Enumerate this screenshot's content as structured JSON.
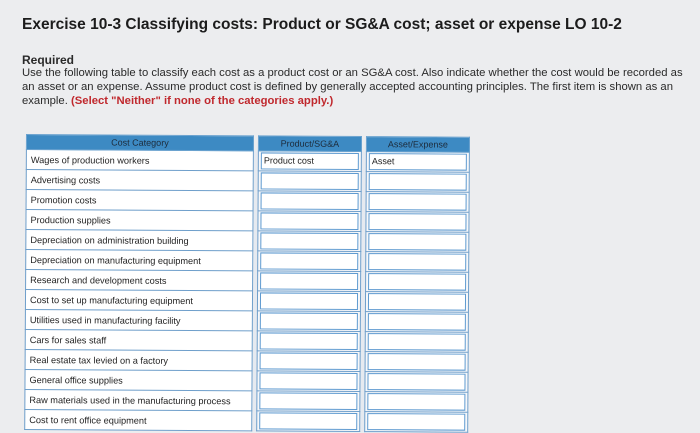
{
  "header": {
    "title": "Exercise 10-3 Classifying costs: Product or SG&A cost; asset or expense LO 10-2"
  },
  "instructions": {
    "heading": "Required",
    "text_part1": "Use the following table to classify each cost as a product cost or an SG&A cost. Also indicate whether the cost would be recorded as an asset or an expense. Assume product cost is defined by generally accepted accounting principles. The first item is shown as an example.",
    "text_red": "(Select \"Neither\" if none of the categories apply.)"
  },
  "table": {
    "headers": {
      "category": "Cost Category",
      "product_sga": "Product/SG&A",
      "asset_expense": "Asset/Expense"
    },
    "rows": [
      {
        "category": "Wages of production workers",
        "product_sga": "Product cost",
        "asset_expense": "Asset"
      },
      {
        "category": "Advertising costs",
        "product_sga": "",
        "asset_expense": ""
      },
      {
        "category": "Promotion costs",
        "product_sga": "",
        "asset_expense": ""
      },
      {
        "category": "Production supplies",
        "product_sga": "",
        "asset_expense": ""
      },
      {
        "category": "Depreciation on administration building",
        "product_sga": "",
        "asset_expense": ""
      },
      {
        "category": "Depreciation on manufacturing equipment",
        "product_sga": "",
        "asset_expense": ""
      },
      {
        "category": "Research and development costs",
        "product_sga": "",
        "asset_expense": ""
      },
      {
        "category": "Cost to set up manufacturing equipment",
        "product_sga": "",
        "asset_expense": ""
      },
      {
        "category": "Utilities used in manufacturing facility",
        "product_sga": "",
        "asset_expense": ""
      },
      {
        "category": "Cars for sales staff",
        "product_sga": "",
        "asset_expense": ""
      },
      {
        "category": "Real estate tax levied on a factory",
        "product_sga": "",
        "asset_expense": ""
      },
      {
        "category": "General office supplies",
        "product_sga": "",
        "asset_expense": ""
      },
      {
        "category": "Raw materials used in the manufacturing process",
        "product_sga": "",
        "asset_expense": ""
      },
      {
        "category": "Cost to rent office equipment",
        "product_sga": "",
        "asset_expense": ""
      }
    ]
  }
}
